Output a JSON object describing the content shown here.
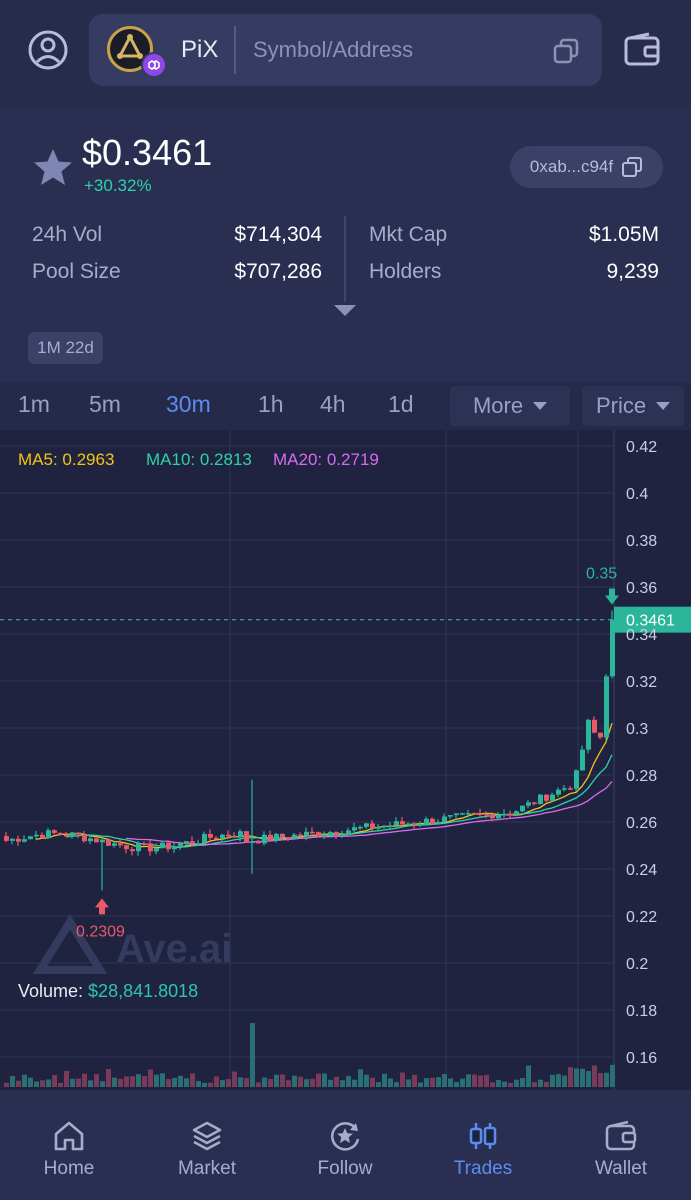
{
  "topbar": {
    "token_symbol": "PiX",
    "search_placeholder": "Symbol/Address"
  },
  "header": {
    "price": "$0.3461",
    "change": "+30.32%",
    "address": "0xab...c94f",
    "stats": {
      "vol_label": "24h Vol",
      "vol_value": "$714,304",
      "pool_label": "Pool Size",
      "pool_value": "$707,286",
      "mcap_label": "Mkt Cap",
      "mcap_value": "$1.05M",
      "holders_label": "Holders",
      "holders_value": "9,239"
    },
    "age": "1M 22d"
  },
  "timeframes": {
    "items": [
      "1m",
      "5m",
      "30m",
      "1h",
      "4h",
      "1d"
    ],
    "active": "30m",
    "more_label": "More",
    "price_label": "Price"
  },
  "chart": {
    "ma5": "MA5: 0.2963",
    "ma10": "MA10: 0.2813",
    "ma20": "MA20: 0.2719",
    "volume_prefix": "Volume: ",
    "volume_value": "$28,841.8018",
    "watermark": "Ave.ai",
    "low_marker": "0.2309",
    "high_marker": "0.35",
    "current_label": "0.3461",
    "colors": {
      "up": "#2bb59a",
      "down": "#e8596a",
      "ma5": "#f0c419",
      "ma10": "#2bd4a6",
      "ma20": "#d76bf0"
    }
  },
  "chart_data": {
    "type": "candlestick",
    "y_ticks": [
      "0.42",
      "0.4",
      "0.38",
      "0.36",
      "0.34",
      "0.32",
      "0.3",
      "0.28",
      "0.26",
      "0.24",
      "0.22",
      "0.2",
      "0.18",
      "0.16"
    ],
    "ylim": [
      0.155,
      0.425
    ],
    "current_price": 0.3461,
    "low": 0.2309,
    "high": 0.35,
    "indicators": {
      "MA5": 0.2963,
      "MA10": 0.2813,
      "MA20": 0.2719
    },
    "volume": "$28,841.8018"
  },
  "nav": {
    "items": [
      {
        "label": "Home",
        "icon": "home-icon"
      },
      {
        "label": "Market",
        "icon": "layers-icon"
      },
      {
        "label": "Follow",
        "icon": "follow-star-icon"
      },
      {
        "label": "Trades",
        "icon": "candles-icon"
      },
      {
        "label": "Wallet",
        "icon": "wallet-icon"
      }
    ],
    "active": "Trades"
  }
}
